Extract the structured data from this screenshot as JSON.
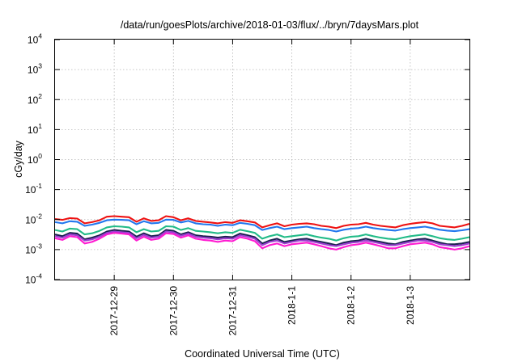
{
  "chart_data": {
    "type": "line",
    "title": "/data/run/goesPlots/archive/2018-01-03/flux/../bryn/7daysMars.plot",
    "xlabel": "Coordinated Universal Time (UTC)",
    "ylabel": "cGy/day",
    "yscale": "log",
    "ylim": [
      0.0001,
      10000
    ],
    "y_ticks": [
      {
        "base": "10",
        "exp": "-4",
        "value": 0.0001
      },
      {
        "base": "10",
        "exp": "-3",
        "value": 0.001
      },
      {
        "base": "10",
        "exp": "-2",
        "value": 0.01
      },
      {
        "base": "10",
        "exp": "-1",
        "value": 0.1
      },
      {
        "base": "10",
        "exp": "0",
        "value": 1
      },
      {
        "base": "10",
        "exp": "1",
        "value": 10
      },
      {
        "base": "10",
        "exp": "2",
        "value": 100
      },
      {
        "base": "10",
        "exp": "3",
        "value": 1000
      },
      {
        "base": "10",
        "exp": "4",
        "value": 10000
      }
    ],
    "xlim": [
      "2017-12-28T00:00",
      "2018-01-04T00:00"
    ],
    "x_ticks": [
      {
        "label": "2017-12-29",
        "value": "2017-12-29T00:00"
      },
      {
        "label": "2017-12-30",
        "value": "2017-12-30T00:00"
      },
      {
        "label": "2017-12-31",
        "value": "2017-12-31T00:00"
      },
      {
        "label": "2018-1-1",
        "value": "2018-01-01T00:00"
      },
      {
        "label": "2018-1-2",
        "value": "2018-01-02T00:00"
      },
      {
        "label": "2018-1-3",
        "value": "2018-01-03T00:00"
      }
    ],
    "grid": true,
    "x": [
      "2017-12-28T00:00",
      "2017-12-28T03:00",
      "2017-12-28T06:00",
      "2017-12-28T09:00",
      "2017-12-28T12:00",
      "2017-12-28T15:00",
      "2017-12-28T18:00",
      "2017-12-28T21:00",
      "2017-12-29T00:00",
      "2017-12-29T03:00",
      "2017-12-29T06:00",
      "2017-12-29T09:00",
      "2017-12-29T12:00",
      "2017-12-29T15:00",
      "2017-12-29T18:00",
      "2017-12-29T21:00",
      "2017-12-30T00:00",
      "2017-12-30T03:00",
      "2017-12-30T06:00",
      "2017-12-30T09:00",
      "2017-12-30T12:00",
      "2017-12-30T15:00",
      "2017-12-30T18:00",
      "2017-12-30T21:00",
      "2017-12-31T00:00",
      "2017-12-31T03:00",
      "2017-12-31T06:00",
      "2017-12-31T09:00",
      "2017-12-31T12:00",
      "2017-12-31T15:00",
      "2017-12-31T18:00",
      "2017-12-31T21:00",
      "2018-01-01T00:00",
      "2018-01-01T03:00",
      "2018-01-01T06:00",
      "2018-01-01T09:00",
      "2018-01-01T12:00",
      "2018-01-01T15:00",
      "2018-01-01T18:00",
      "2018-01-01T21:00",
      "2018-01-02T00:00",
      "2018-01-02T03:00",
      "2018-01-02T06:00",
      "2018-01-02T09:00",
      "2018-01-02T12:00",
      "2018-01-02T15:00",
      "2018-01-02T18:00",
      "2018-01-02T21:00",
      "2018-01-03T00:00",
      "2018-01-03T03:00",
      "2018-01-03T06:00",
      "2018-01-03T09:00",
      "2018-01-03T12:00",
      "2018-01-03T15:00",
      "2018-01-03T18:00",
      "2018-01-03T21:00",
      "2018-01-04T00:00"
    ],
    "series": [
      {
        "color": "#ee1111",
        "values": [
          0.0105,
          0.0098,
          0.0112,
          0.0108,
          0.0075,
          0.0082,
          0.0095,
          0.0125,
          0.013,
          0.0125,
          0.012,
          0.0085,
          0.011,
          0.009,
          0.0095,
          0.013,
          0.012,
          0.0095,
          0.011,
          0.009,
          0.0085,
          0.008,
          0.0075,
          0.0082,
          0.0078,
          0.0095,
          0.0088,
          0.008,
          0.0055,
          0.0065,
          0.0075,
          0.006,
          0.0068,
          0.0072,
          0.0075,
          0.007,
          0.0062,
          0.0058,
          0.0052,
          0.0062,
          0.0068,
          0.007,
          0.0078,
          0.0068,
          0.0062,
          0.0058,
          0.0055,
          0.0065,
          0.0072,
          0.0078,
          0.0082,
          0.0075,
          0.0062,
          0.0058,
          0.0055,
          0.0062,
          0.0072
        ]
      },
      {
        "color": "#2277ee",
        "values": [
          0.0082,
          0.0075,
          0.0088,
          0.0085,
          0.0062,
          0.0068,
          0.0078,
          0.0095,
          0.01,
          0.0098,
          0.0095,
          0.007,
          0.0088,
          0.0075,
          0.0078,
          0.01,
          0.0098,
          0.008,
          0.009,
          0.0075,
          0.007,
          0.0068,
          0.0062,
          0.0068,
          0.0065,
          0.0078,
          0.0072,
          0.0065,
          0.0045,
          0.0052,
          0.0058,
          0.0048,
          0.0052,
          0.0055,
          0.0058,
          0.0052,
          0.0048,
          0.0045,
          0.004,
          0.0046,
          0.005,
          0.0052,
          0.0058,
          0.0052,
          0.0048,
          0.0045,
          0.0043,
          0.0048,
          0.0052,
          0.0055,
          0.0058,
          0.0052,
          0.0046,
          0.0043,
          0.0041,
          0.0044,
          0.0048
        ]
      },
      {
        "color": "#22bb88",
        "values": [
          0.0045,
          0.004,
          0.005,
          0.0048,
          0.0032,
          0.0035,
          0.0042,
          0.0055,
          0.006,
          0.0058,
          0.0055,
          0.0038,
          0.0048,
          0.004,
          0.0042,
          0.006,
          0.0058,
          0.0045,
          0.0052,
          0.0042,
          0.004,
          0.0038,
          0.0035,
          0.0038,
          0.0036,
          0.0046,
          0.0041,
          0.0036,
          0.0023,
          0.0028,
          0.0032,
          0.0026,
          0.0028,
          0.003,
          0.0032,
          0.0028,
          0.0025,
          0.0023,
          0.002,
          0.0024,
          0.0027,
          0.0028,
          0.0032,
          0.0028,
          0.0025,
          0.0023,
          0.0022,
          0.0025,
          0.0028,
          0.003,
          0.0032,
          0.0028,
          0.0024,
          0.0022,
          0.0021,
          0.0023,
          0.0026
        ]
      },
      {
        "color": "#1a1f4f",
        "values": [
          0.0032,
          0.0028,
          0.0036,
          0.0034,
          0.0022,
          0.0025,
          0.003,
          0.004,
          0.0045,
          0.0042,
          0.004,
          0.0027,
          0.0035,
          0.0028,
          0.003,
          0.0045,
          0.0042,
          0.0032,
          0.0038,
          0.003,
          0.0028,
          0.0027,
          0.0025,
          0.0027,
          0.0026,
          0.0034,
          0.003,
          0.0026,
          0.0016,
          0.002,
          0.0023,
          0.0018,
          0.002,
          0.0022,
          0.0023,
          0.002,
          0.0018,
          0.0016,
          0.0014,
          0.0017,
          0.0019,
          0.002,
          0.0023,
          0.002,
          0.0018,
          0.0016,
          0.0015,
          0.0018,
          0.002,
          0.0022,
          0.0023,
          0.002,
          0.0017,
          0.0015,
          0.0015,
          0.0016,
          0.0018
        ]
      },
      {
        "color": "#9b3fcf",
        "values": [
          0.0028,
          0.0025,
          0.0032,
          0.003,
          0.002,
          0.0022,
          0.0027,
          0.0036,
          0.004,
          0.0038,
          0.0036,
          0.0024,
          0.0031,
          0.0025,
          0.0027,
          0.004,
          0.0038,
          0.0029,
          0.0034,
          0.0027,
          0.0025,
          0.0024,
          0.0022,
          0.0024,
          0.0023,
          0.003,
          0.0027,
          0.0023,
          0.0014,
          0.0018,
          0.002,
          0.0016,
          0.0018,
          0.002,
          0.002,
          0.0018,
          0.0016,
          0.0014,
          0.0013,
          0.0015,
          0.0017,
          0.0018,
          0.002,
          0.0018,
          0.0016,
          0.0014,
          0.0014,
          0.0016,
          0.0018,
          0.002,
          0.002,
          0.0018,
          0.0015,
          0.0014,
          0.0013,
          0.0014,
          0.0016
        ]
      },
      {
        "color": "#ff1ad1",
        "values": [
          0.0024,
          0.0021,
          0.0028,
          0.0026,
          0.0016,
          0.0018,
          0.0023,
          0.0032,
          0.0036,
          0.0034,
          0.0032,
          0.002,
          0.0027,
          0.0021,
          0.0023,
          0.0035,
          0.0033,
          0.0025,
          0.003,
          0.0023,
          0.0021,
          0.002,
          0.0018,
          0.002,
          0.0019,
          0.0026,
          0.0023,
          0.0019,
          0.0011,
          0.0014,
          0.0016,
          0.0013,
          0.0015,
          0.0016,
          0.0017,
          0.0015,
          0.0013,
          0.0011,
          0.001,
          0.0012,
          0.0014,
          0.0015,
          0.0017,
          0.0015,
          0.0013,
          0.0011,
          0.0011,
          0.0013,
          0.0015,
          0.0016,
          0.0017,
          0.0015,
          0.0012,
          0.0011,
          0.001,
          0.0011,
          0.0013
        ]
      }
    ]
  }
}
